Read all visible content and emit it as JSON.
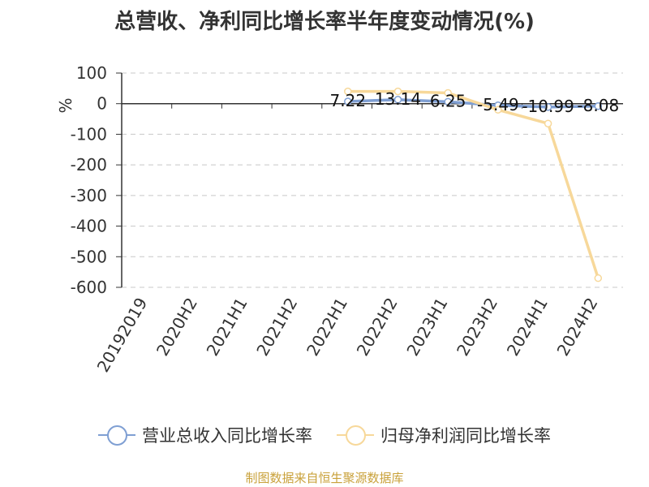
{
  "chart_data": {
    "type": "line",
    "title": "总营收、净利同比增长率半年度变动情况(%)",
    "ylabel": "%",
    "xlabel": "",
    "categories": [
      "20192019",
      "2020H2",
      "2021H1",
      "2021H2",
      "2022H1",
      "2022H2",
      "2023H1",
      "2023H2",
      "2024H1",
      "2024H2"
    ],
    "ylim": [
      -600,
      100
    ],
    "yticks": [
      100,
      0,
      -100,
      -200,
      -300,
      -400,
      -500,
      -600
    ],
    "grid": true,
    "legend": "bottom",
    "series": [
      {
        "name": "营业总收入同比增长率",
        "color": "#7f9fd3",
        "values": [
          null,
          null,
          null,
          null,
          7.22,
          13.14,
          6.25,
          -5.49,
          -10.99,
          -8.08
        ],
        "labels": [
          "",
          "",
          "",
          "",
          "7.22",
          "13.14",
          "6.25",
          "-5.49",
          "-10.99",
          "-8.08"
        ]
      },
      {
        "name": "归母净利润同比增长率",
        "color": "#f7d89a",
        "values": [
          null,
          null,
          null,
          null,
          40,
          40,
          35,
          -20,
          -65,
          -570
        ],
        "labels": []
      }
    ]
  },
  "source": "制图数据来自恒生聚源数据库"
}
